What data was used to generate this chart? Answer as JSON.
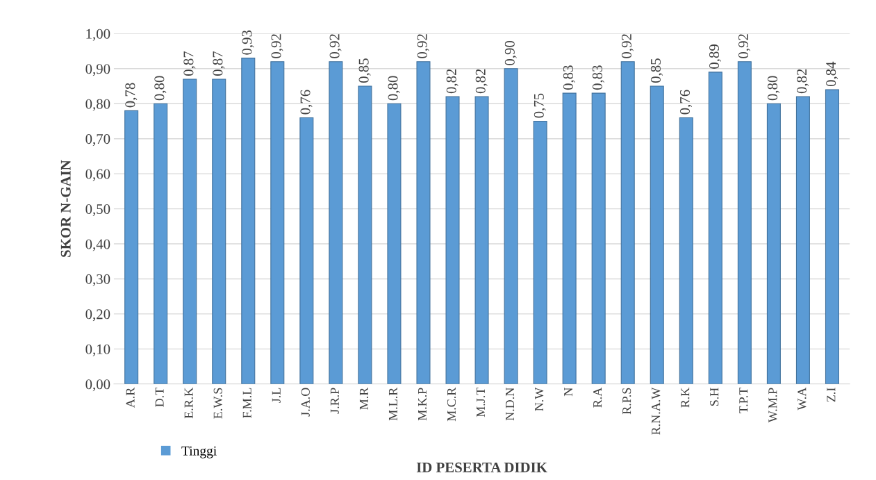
{
  "chart_data": {
    "type": "bar",
    "xlabel": "ID PESERTA DIDIK",
    "ylabel": "SKOR N-GAIN",
    "categories": [
      "A.R",
      "D.T",
      "E.R.K",
      "E.W.S",
      "F.M.L",
      "J.L",
      "J.A.O",
      "J.R.P",
      "M.R",
      "M.L.R",
      "M.K.P",
      "M.C.R",
      "M.J.T",
      "N.D.N",
      "N.W",
      "N",
      "R.A",
      "R.P.S",
      "R.N.A.W",
      "R.K",
      "S.H",
      "T.P.T",
      "W.M.P",
      "W.A",
      "Z.I"
    ],
    "series": [
      {
        "name": "Tinggi",
        "color": "#5b9bd5",
        "values": [
          0.78,
          0.8,
          0.87,
          0.87,
          0.93,
          0.92,
          0.76,
          0.92,
          0.85,
          0.8,
          0.92,
          0.82,
          0.82,
          0.9,
          0.75,
          0.83,
          0.83,
          0.92,
          0.85,
          0.76,
          0.89,
          0.92,
          0.8,
          0.82,
          0.84
        ],
        "value_labels": [
          "0,78",
          "0,80",
          "0,87",
          "0,87",
          "0,93",
          "0,92",
          "0,76",
          "0,92",
          "0,85",
          "0,80",
          "0,92",
          "0,82",
          "0,82",
          "0,90",
          "0,75",
          "0,83",
          "0,83",
          "0,92",
          "0,85",
          "0,76",
          "0,89",
          "0,92",
          "0,80",
          "0,82",
          "0,84"
        ]
      }
    ],
    "ylim": [
      0,
      1.0
    ],
    "yticks": [
      {
        "value": 0,
        "label": "0,00"
      },
      {
        "value": 0.1,
        "label": "0,10"
      },
      {
        "value": 0.2,
        "label": "0,20"
      },
      {
        "value": 0.3,
        "label": "0,30"
      },
      {
        "value": 0.4,
        "label": "0,40"
      },
      {
        "value": 0.5,
        "label": "0,50"
      },
      {
        "value": 0.6,
        "label": "0,60"
      },
      {
        "value": 0.7,
        "label": "0,70"
      },
      {
        "value": 0.8,
        "label": "0,80"
      },
      {
        "value": 0.9,
        "label": "0,90"
      },
      {
        "value": 1.0,
        "label": "1,00"
      }
    ],
    "grid": "y",
    "legend": "bottom left"
  }
}
